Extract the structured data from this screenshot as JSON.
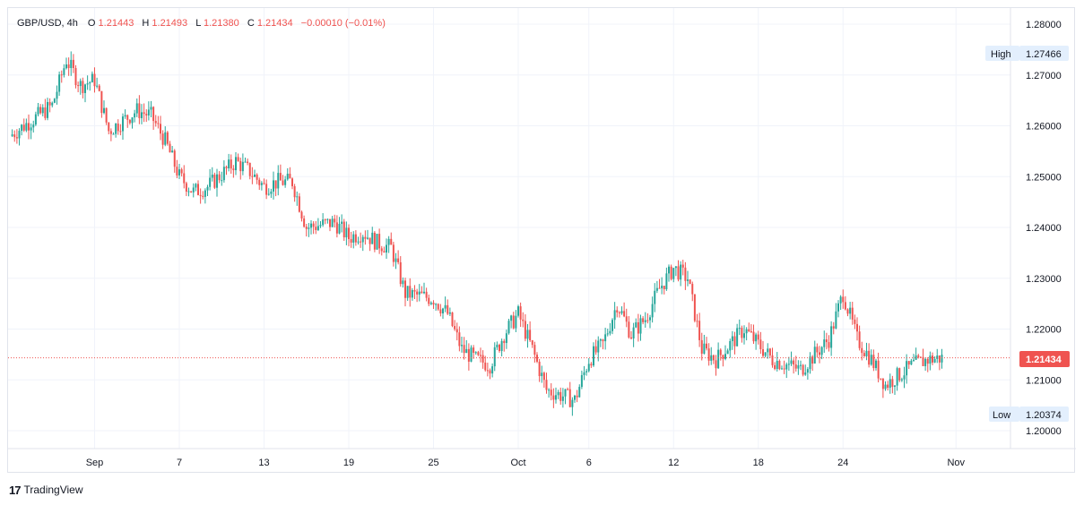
{
  "legend": {
    "symbol": "GBP/USD, 4h",
    "open_label": "O",
    "open": "1.21443",
    "high_label": "H",
    "high": "1.21493",
    "low_label": "L",
    "low": "1.21380",
    "close_label": "C",
    "close": "1.21434",
    "change": "−0.00010 (−0.01%)"
  },
  "branding": {
    "logo": "17",
    "name": "TradingView"
  },
  "markers": {
    "high": {
      "label": "High",
      "value": 1.27466,
      "text": "1.27466"
    },
    "low": {
      "label": "Low",
      "value": 1.20374,
      "text": "1.20374"
    },
    "last": {
      "value": 1.21434,
      "text": "1.21434"
    }
  },
  "colors": {
    "up": "#26a69a",
    "down": "#ef5350",
    "grid": "#f0f3fa",
    "last_price": "#ef5350",
    "marker_bg": "#e3effd"
  },
  "chart_data": {
    "type": "candlestick",
    "yaxis": {
      "min": 1.2,
      "max": 1.28,
      "ticks": [
        "1.28000",
        "1.27000",
        "1.26000",
        "1.25000",
        "1.24000",
        "1.23000",
        "1.22000",
        "1.21000",
        "1.20000"
      ]
    },
    "xaxis": {
      "ticks": [
        {
          "label": "Sep",
          "date": "2022-09-01"
        },
        {
          "label": "7",
          "date": "2022-09-07"
        },
        {
          "label": "13",
          "date": "2022-09-13"
        },
        {
          "label": "19",
          "date": "2022-09-19"
        },
        {
          "label": "25",
          "date": "2022-09-25"
        },
        {
          "label": "Oct",
          "date": "2022-10-01"
        },
        {
          "label": "6",
          "date": "2022-10-06"
        },
        {
          "label": "12",
          "date": "2022-10-12"
        },
        {
          "label": "18",
          "date": "2022-10-18"
        },
        {
          "label": "24",
          "date": "2022-10-24"
        },
        {
          "label": "Nov",
          "date": "2022-11-01"
        }
      ]
    },
    "ohlc_key_points": [
      {
        "date": "2022-08-26",
        "close": 1.258
      },
      {
        "date": "2022-08-29",
        "close": 1.264
      },
      {
        "date": "2022-08-30",
        "close": 1.273
      },
      {
        "date": "2022-08-31",
        "close": 1.268
      },
      {
        "date": "2022-09-01",
        "close": 1.269
      },
      {
        "date": "2022-09-02",
        "close": 1.259
      },
      {
        "date": "2022-09-04",
        "close": 1.263
      },
      {
        "date": "2022-09-05",
        "close": 1.262
      },
      {
        "date": "2022-09-06",
        "close": 1.257
      },
      {
        "date": "2022-09-07",
        "close": 1.25
      },
      {
        "date": "2022-09-08",
        "close": 1.247
      },
      {
        "date": "2022-09-09",
        "close": 1.248
      },
      {
        "date": "2022-09-11",
        "close": 1.253
      },
      {
        "date": "2022-09-12",
        "close": 1.251
      },
      {
        "date": "2022-09-13",
        "close": 1.248
      },
      {
        "date": "2022-09-14",
        "close": 1.249
      },
      {
        "date": "2022-09-15",
        "close": 1.249
      },
      {
        "date": "2022-09-16",
        "close": 1.24
      },
      {
        "date": "2022-09-18",
        "close": 1.241
      },
      {
        "date": "2022-09-19",
        "close": 1.238
      },
      {
        "date": "2022-09-20",
        "close": 1.239
      },
      {
        "date": "2022-09-21",
        "close": 1.237
      },
      {
        "date": "2022-09-22",
        "close": 1.236
      },
      {
        "date": "2022-09-23",
        "close": 1.227
      },
      {
        "date": "2022-09-25",
        "close": 1.226
      },
      {
        "date": "2022-09-26",
        "close": 1.223
      },
      {
        "date": "2022-09-27",
        "close": 1.216
      },
      {
        "date": "2022-09-28",
        "close": 1.214
      },
      {
        "date": "2022-09-29",
        "close": 1.213
      },
      {
        "date": "2022-09-30",
        "close": 1.219
      },
      {
        "date": "2022-10-01",
        "close": 1.223
      },
      {
        "date": "2022-10-02",
        "close": 1.216
      },
      {
        "date": "2022-10-03",
        "close": 1.208
      },
      {
        "date": "2022-10-04",
        "close": 1.207
      },
      {
        "date": "2022-10-05",
        "close": 1.206
      },
      {
        "date": "2022-10-06",
        "close": 1.214
      },
      {
        "date": "2022-10-07",
        "close": 1.217
      },
      {
        "date": "2022-10-08",
        "close": 1.225
      },
      {
        "date": "2022-10-09",
        "close": 1.219
      },
      {
        "date": "2022-10-10",
        "close": 1.222
      },
      {
        "date": "2022-10-11",
        "close": 1.228
      },
      {
        "date": "2022-10-12",
        "close": 1.232
      },
      {
        "date": "2022-10-13",
        "close": 1.23
      },
      {
        "date": "2022-10-14",
        "close": 1.216
      },
      {
        "date": "2022-10-15",
        "close": 1.214
      },
      {
        "date": "2022-10-16",
        "close": 1.217
      },
      {
        "date": "2022-10-17",
        "close": 1.22
      },
      {
        "date": "2022-10-18",
        "close": 1.217
      },
      {
        "date": "2022-10-19",
        "close": 1.214
      },
      {
        "date": "2022-10-20",
        "close": 1.213
      },
      {
        "date": "2022-10-21",
        "close": 1.212
      },
      {
        "date": "2022-10-22",
        "close": 1.215
      },
      {
        "date": "2022-10-23",
        "close": 1.218
      },
      {
        "date": "2022-10-24",
        "close": 1.227
      },
      {
        "date": "2022-10-25",
        "close": 1.218
      },
      {
        "date": "2022-10-26",
        "close": 1.214
      },
      {
        "date": "2022-10-27",
        "close": 1.209
      },
      {
        "date": "2022-10-28",
        "close": 1.211
      },
      {
        "date": "2022-10-29",
        "close": 1.213
      },
      {
        "date": "2022-10-30",
        "close": 1.214
      },
      {
        "date": "2022-10-31",
        "close": 1.2143
      }
    ]
  }
}
